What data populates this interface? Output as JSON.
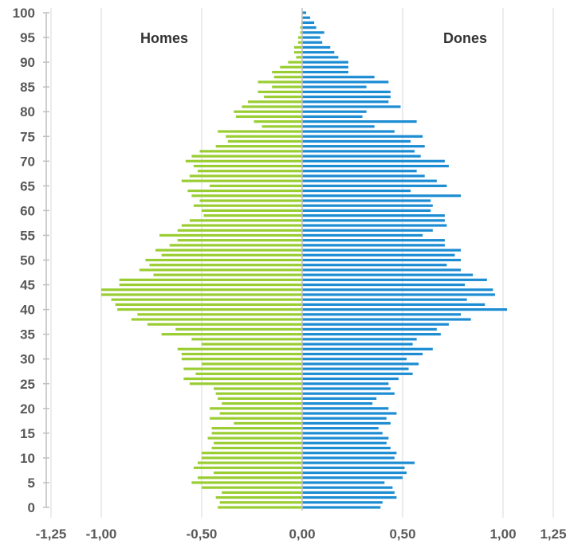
{
  "chart_data": {
    "type": "bar",
    "orientation": "horizontal-pyramid",
    "y_categories": [
      "0",
      "1",
      "2",
      "3",
      "4",
      "5",
      "6",
      "7",
      "8",
      "9",
      "10",
      "11",
      "12",
      "13",
      "14",
      "15",
      "16",
      "17",
      "18",
      "19",
      "20",
      "21",
      "22",
      "23",
      "24",
      "25",
      "26",
      "27",
      "28",
      "29",
      "30",
      "31",
      "32",
      "33",
      "34",
      "35",
      "36",
      "37",
      "38",
      "39",
      "40",
      "41",
      "42",
      "43",
      "44",
      "45",
      "46",
      "47",
      "48",
      "49",
      "50",
      "51",
      "52",
      "53",
      "54",
      "55",
      "56",
      "57",
      "58",
      "59",
      "60",
      "61",
      "62",
      "63",
      "64",
      "65",
      "66",
      "67",
      "68",
      "69",
      "70",
      "71",
      "72",
      "73",
      "74",
      "75",
      "76",
      "77",
      "78",
      "79",
      "80",
      "81",
      "82",
      "83",
      "84",
      "85",
      "86",
      "87",
      "88",
      "89",
      "90",
      "91",
      "92",
      "93",
      "94",
      "95",
      "96",
      "97",
      "98",
      "99",
      "100"
    ],
    "series": [
      {
        "name": "Homes",
        "color": "#9acd32",
        "values": [
          -0.42,
          -0.41,
          -0.43,
          -0.4,
          -0.5,
          -0.55,
          -0.52,
          -0.44,
          -0.54,
          -0.52,
          -0.5,
          -0.5,
          -0.45,
          -0.44,
          -0.47,
          -0.45,
          -0.45,
          -0.34,
          -0.46,
          -0.41,
          -0.46,
          -0.4,
          -0.42,
          -0.43,
          -0.44,
          -0.56,
          -0.59,
          -0.53,
          -0.59,
          -0.5,
          -0.6,
          -0.6,
          -0.62,
          -0.5,
          -0.55,
          -0.7,
          -0.63,
          -0.77,
          -0.85,
          -0.82,
          -0.92,
          -0.93,
          -0.95,
          -1.0,
          -1.0,
          -0.91,
          -0.91,
          -0.74,
          -0.81,
          -0.76,
          -0.78,
          -0.7,
          -0.73,
          -0.66,
          -0.62,
          -0.71,
          -0.62,
          -0.6,
          -0.56,
          -0.49,
          -0.5,
          -0.54,
          -0.51,
          -0.55,
          -0.57,
          -0.46,
          -0.6,
          -0.56,
          -0.52,
          -0.54,
          -0.58,
          -0.55,
          -0.51,
          -0.43,
          -0.37,
          -0.38,
          -0.42,
          -0.2,
          -0.24,
          -0.33,
          -0.34,
          -0.3,
          -0.27,
          -0.19,
          -0.22,
          -0.15,
          -0.22,
          -0.14,
          -0.15,
          -0.11,
          -0.07,
          -0.03,
          -0.04,
          -0.04,
          -0.02,
          -0.02,
          -0.01,
          -0.01,
          -0.005,
          -0.003,
          -0.002
        ]
      },
      {
        "name": "Dones",
        "color": "#1c8cd3",
        "values": [
          0.39,
          0.4,
          0.47,
          0.46,
          0.45,
          0.41,
          0.5,
          0.52,
          0.51,
          0.56,
          0.46,
          0.47,
          0.44,
          0.42,
          0.43,
          0.4,
          0.38,
          0.44,
          0.42,
          0.47,
          0.43,
          0.35,
          0.37,
          0.46,
          0.44,
          0.43,
          0.48,
          0.55,
          0.53,
          0.58,
          0.52,
          0.6,
          0.65,
          0.55,
          0.57,
          0.69,
          0.67,
          0.73,
          0.84,
          0.79,
          1.02,
          0.91,
          0.82,
          0.96,
          0.95,
          0.81,
          0.92,
          0.85,
          0.79,
          0.72,
          0.79,
          0.76,
          0.79,
          0.71,
          0.71,
          0.6,
          0.65,
          0.72,
          0.71,
          0.71,
          0.64,
          0.65,
          0.64,
          0.79,
          0.54,
          0.72,
          0.67,
          0.61,
          0.57,
          0.73,
          0.71,
          0.59,
          0.56,
          0.61,
          0.54,
          0.6,
          0.46,
          0.36,
          0.57,
          0.3,
          0.32,
          0.49,
          0.43,
          0.44,
          0.44,
          0.32,
          0.43,
          0.36,
          0.23,
          0.23,
          0.23,
          0.18,
          0.16,
          0.14,
          0.1,
          0.09,
          0.11,
          0.07,
          0.06,
          0.04,
          0.02
        ]
      }
    ],
    "x_ticks": [
      -1.25,
      -1.0,
      -0.5,
      0.0,
      0.5,
      1.0,
      1.25
    ],
    "x_tick_labels": [
      "-1,25",
      "-1,00",
      "-0,50",
      "0,00",
      "0,50",
      "1,00",
      "1,25"
    ],
    "y_ticks": [
      0,
      5,
      10,
      15,
      20,
      25,
      30,
      35,
      40,
      45,
      50,
      55,
      60,
      65,
      70,
      75,
      80,
      85,
      90,
      95,
      100
    ],
    "y_tick_labels": [
      "0",
      "5",
      "10",
      "15",
      "20",
      "25",
      "30",
      "35",
      "40",
      "45",
      "50",
      "55",
      "60",
      "65",
      "70",
      "75",
      "80",
      "85",
      "90",
      "95",
      "100"
    ],
    "xlim": [
      -1.25,
      1.25
    ],
    "ylim": [
      0,
      100
    ],
    "grid": true,
    "grid_color": "#d9d9d9",
    "axis_color": "#bfbfbf",
    "title": "",
    "xlabel": "",
    "ylabel": "",
    "legend_labels": {
      "left": "Homes",
      "right": "Dones"
    }
  }
}
